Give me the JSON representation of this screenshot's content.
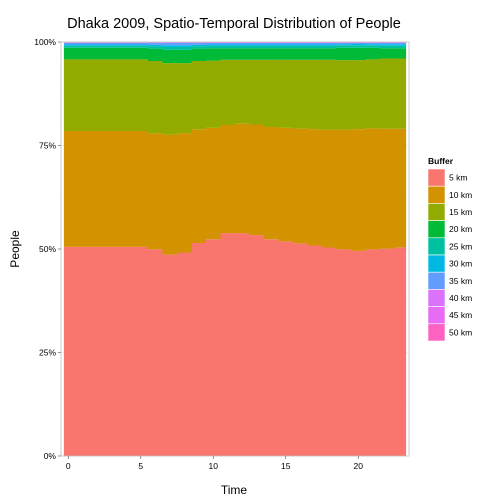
{
  "chart_data": {
    "type": "area",
    "title": "Dhaka 2009, Spatio-Temporal Distribution of People",
    "xlabel": "Time",
    "ylabel": "People",
    "xlim": [
      -0.5,
      23.5
    ],
    "ylim": [
      0,
      1
    ],
    "x_ticks": [
      0,
      5,
      10,
      15,
      20
    ],
    "x_tick_labels": [
      "0",
      "5",
      "10",
      "15",
      "20"
    ],
    "y_ticks": [
      0,
      0.25,
      0.5,
      0.75,
      1
    ],
    "y_tick_labels": [
      "0%",
      "25%",
      "50%",
      "75%",
      "100%"
    ],
    "grid": true,
    "position": "fill",
    "step": true,
    "legend": {
      "title": "Buffer",
      "placement": "right"
    },
    "x": [
      0,
      1,
      2,
      3,
      4,
      5,
      6,
      7,
      8,
      9,
      10,
      11,
      12,
      13,
      14,
      15,
      16,
      17,
      18,
      19,
      20,
      21,
      22,
      23
    ],
    "series": [
      {
        "name": "5 km",
        "color": "#F8766D",
        "values": [
          0.505,
          0.505,
          0.505,
          0.505,
          0.505,
          0.505,
          0.5,
          0.487,
          0.492,
          0.515,
          0.525,
          0.54,
          0.54,
          0.535,
          0.525,
          0.52,
          0.515,
          0.51,
          0.505,
          0.5,
          0.497,
          0.5,
          0.502,
          0.505
        ]
      },
      {
        "name": "10 km",
        "color": "#D39200",
        "values": [
          0.28,
          0.28,
          0.28,
          0.28,
          0.28,
          0.28,
          0.28,
          0.29,
          0.288,
          0.275,
          0.27,
          0.262,
          0.265,
          0.268,
          0.272,
          0.275,
          0.278,
          0.282,
          0.285,
          0.29,
          0.295,
          0.293,
          0.29,
          0.287
        ]
      },
      {
        "name": "15 km",
        "color": "#93AA00",
        "values": [
          0.173,
          0.173,
          0.173,
          0.173,
          0.173,
          0.173,
          0.175,
          0.173,
          0.17,
          0.165,
          0.163,
          0.158,
          0.155,
          0.157,
          0.163,
          0.165,
          0.167,
          0.168,
          0.17,
          0.168,
          0.167,
          0.167,
          0.17,
          0.17
        ]
      },
      {
        "name": "20 km",
        "color": "#00BA38",
        "values": [
          0.028,
          0.028,
          0.028,
          0.028,
          0.028,
          0.028,
          0.03,
          0.032,
          0.032,
          0.03,
          0.03,
          0.028,
          0.028,
          0.028,
          0.028,
          0.028,
          0.028,
          0.028,
          0.028,
          0.03,
          0.03,
          0.028,
          0.025,
          0.025
        ]
      },
      {
        "name": "25 km",
        "color": "#00C19F",
        "values": [
          0.005,
          0.005,
          0.005,
          0.005,
          0.005,
          0.005,
          0.006,
          0.007,
          0.007,
          0.006,
          0.006,
          0.006,
          0.006,
          0.006,
          0.006,
          0.006,
          0.006,
          0.006,
          0.006,
          0.006,
          0.006,
          0.006,
          0.006,
          0.006
        ]
      },
      {
        "name": "30 km",
        "color": "#00B9E3",
        "values": [
          0.003,
          0.003,
          0.003,
          0.003,
          0.003,
          0.003,
          0.003,
          0.004,
          0.004,
          0.003,
          0.003,
          0.003,
          0.003,
          0.003,
          0.003,
          0.003,
          0.003,
          0.003,
          0.003,
          0.003,
          0.003,
          0.003,
          0.004,
          0.004
        ]
      },
      {
        "name": "35 km",
        "color": "#619CFF",
        "values": [
          0.004,
          0.004,
          0.004,
          0.004,
          0.004,
          0.004,
          0.005,
          0.006,
          0.006,
          0.005,
          0.004,
          0.004,
          0.004,
          0.004,
          0.004,
          0.004,
          0.004,
          0.004,
          0.004,
          0.003,
          0.003,
          0.003,
          0.003,
          0.003
        ]
      },
      {
        "name": "40 km",
        "color": "#DB72FB",
        "values": [
          0.001,
          0.001,
          0.001,
          0.001,
          0.001,
          0.001,
          0.001,
          0.001,
          0.001,
          0.001,
          0.001,
          0.001,
          0.001,
          0.001,
          0.001,
          0.001,
          0.001,
          0.001,
          0.001,
          0.001,
          0.001,
          0.001,
          0.001,
          0.001
        ]
      },
      {
        "name": "45 km",
        "color": "#E76BF3",
        "values": [
          0.0005,
          0.0005,
          0.0005,
          0.0005,
          0.0005,
          0.0005,
          0.0005,
          0.0005,
          0.0005,
          0.0005,
          0.0005,
          0.0005,
          0.0005,
          0.0005,
          0.0005,
          0.0005,
          0.0005,
          0.0005,
          0.0005,
          0.0005,
          0.0005,
          0.0005,
          0.0005,
          0.0005
        ]
      },
      {
        "name": "50 km",
        "color": "#FF61C3",
        "values": [
          0.0005,
          0.0005,
          0.0005,
          0.0005,
          0.0005,
          0.0005,
          0.0005,
          0.0005,
          0.0005,
          0.0005,
          0.0005,
          0.0005,
          0.0005,
          0.0005,
          0.0005,
          0.0005,
          0.0005,
          0.0005,
          0.0005,
          0.0005,
          0.0005,
          0.0005,
          0.0005,
          0.0005
        ]
      }
    ],
    "colors": {
      "panel_background": "#ffffff",
      "panel_border": "#bfbfbf",
      "grid_major": "#f0f0f0",
      "grid_minor": "#f7f7f7"
    }
  }
}
